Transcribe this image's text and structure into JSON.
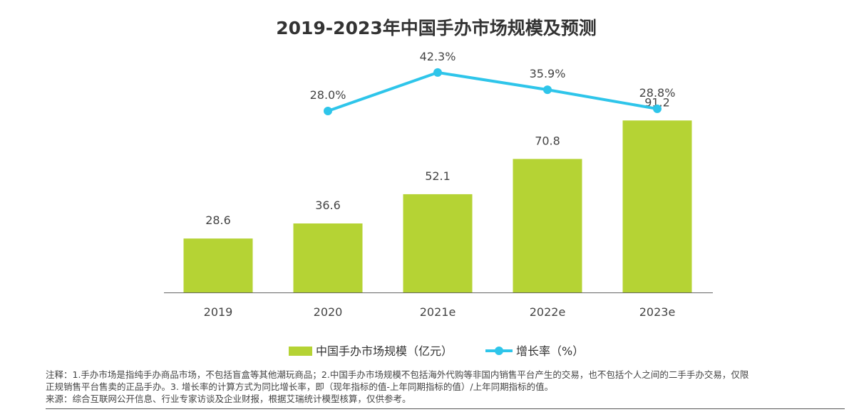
{
  "chart_data": {
    "type": "bar+line",
    "title": "2019-2023年中国手办市场规模及预测",
    "categories": [
      "2019",
      "2020",
      "2021e",
      "2022e",
      "2023e"
    ],
    "series": [
      {
        "name": "中国手办市场规模（亿元）",
        "type": "bar",
        "color": "#b5d334",
        "values": [
          28.6,
          36.6,
          52.1,
          70.8,
          91.2
        ],
        "labels": [
          "28.6",
          "36.6",
          "52.1",
          "70.8",
          "91.2"
        ]
      },
      {
        "name": "增长率（%）",
        "type": "line",
        "color": "#2ec5ea",
        "values": [
          null,
          28.0,
          42.3,
          35.9,
          28.8
        ],
        "labels": [
          "",
          "28.0%",
          "42.3%",
          "35.9%",
          "28.8%"
        ]
      }
    ],
    "legend_position": "bottom",
    "grid": false
  },
  "notes": {
    "line1": "注释：1.手办市场是指纯手办商品市场，不包括盲盒等其他潮玩商品；2.中国手办市场规模不包括海外代购等非国内销售平台产生的交易，也不包括个人之间的二手手办交易，仅限",
    "line2": "正规销售平台售卖的正品手办。3. 增长率的计算方式为同比增长率，即（现年指标的值-上年同期指标的值）/上年同期指标的值。",
    "source": "来源：综合互联网公开信息、行业专家访谈及企业财报，根据艾瑞统计模型核算，仅供参考。"
  }
}
